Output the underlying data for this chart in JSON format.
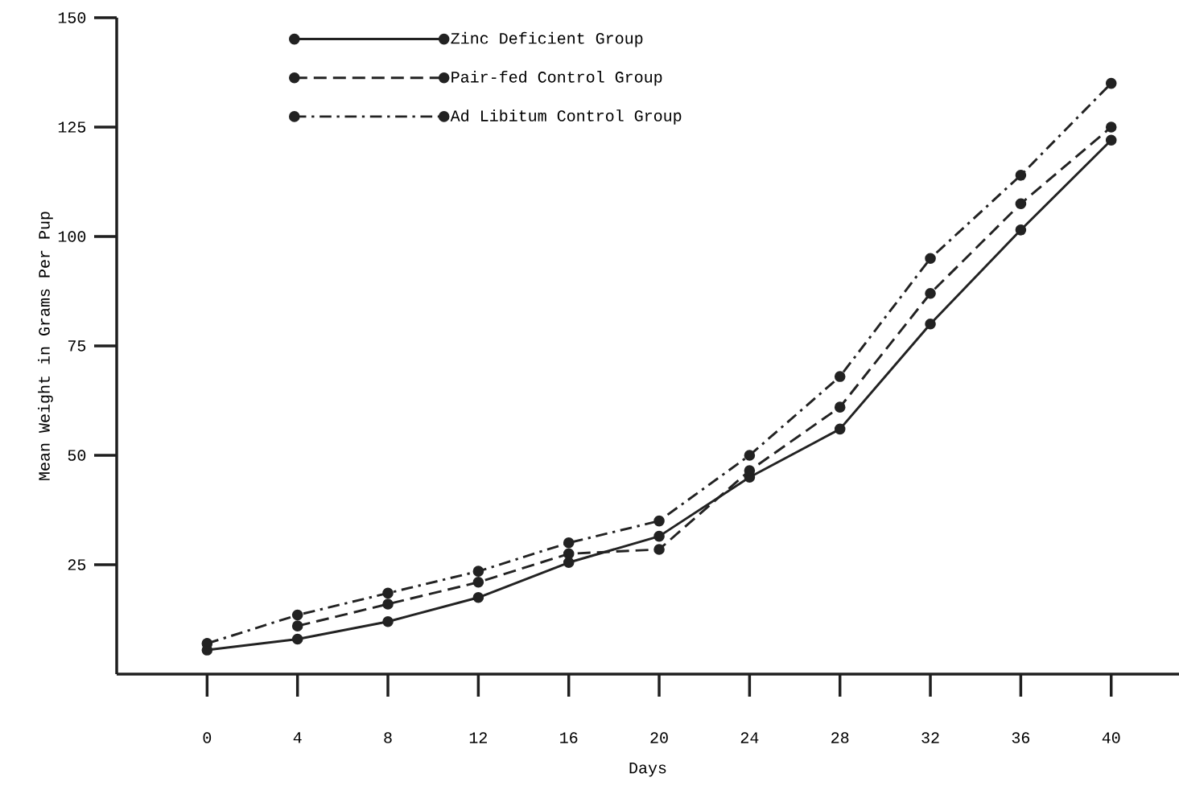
{
  "chart_data": {
    "type": "line",
    "xlabel": "Days",
    "ylabel": "Mean Weight in Grams Per Pup",
    "x": [
      0,
      4,
      8,
      12,
      16,
      20,
      24,
      28,
      32,
      36,
      40
    ],
    "series": [
      {
        "name": "Zinc Deficient Group",
        "color": "#222222",
        "line_style": "solid",
        "values": [
          5.5,
          8,
          12,
          17.5,
          25.5,
          31.5,
          45,
          56,
          80,
          101.5,
          122
        ]
      },
      {
        "name": "Pair-fed Control Group",
        "color": "#222222",
        "line_style": "dashed",
        "values": [
          null,
          11,
          16,
          21,
          27.5,
          28.5,
          46.5,
          61,
          87,
          107.5,
          125
        ]
      },
      {
        "name": "Ad Libitum Control Group",
        "color": "#222222",
        "line_style": "dashdot",
        "values": [
          7,
          13.5,
          18.5,
          23.5,
          30,
          35,
          50,
          68,
          95,
          114,
          135
        ]
      }
    ],
    "xlim": [
      -4,
      43
    ],
    "ylim": [
      0,
      150
    ],
    "xticks": [
      0,
      4,
      8,
      12,
      16,
      20,
      24,
      28,
      32,
      36,
      40
    ],
    "yticks": [
      25,
      50,
      75,
      100,
      125,
      150
    ],
    "legend": "top left",
    "marker": "circle"
  }
}
